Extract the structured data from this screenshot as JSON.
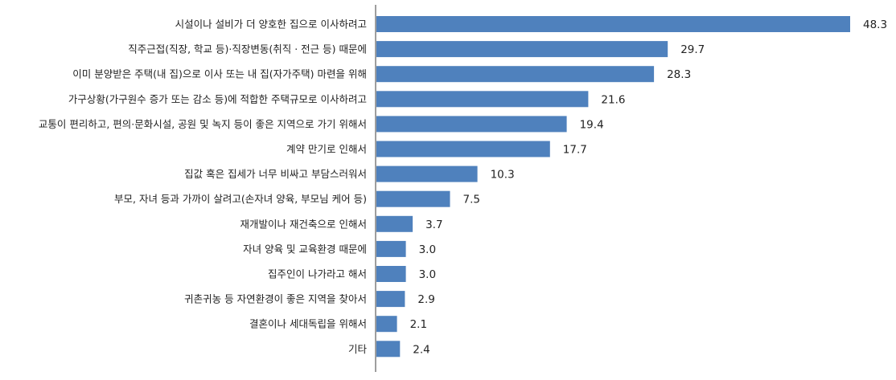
{
  "chart_data": {
    "type": "bar",
    "orientation": "horizontal",
    "categories": [
      "시설이나 설비가 더 양호한 집으로 이사하려고",
      "직주근접(직장, 학교 등)·직장변동(취직 · 전근 등) 때문에",
      "이미 분양받은 주택(내 집)으로 이사 또는 내 집(자가주택) 마련을 위해",
      "가구상황(가구원수 증가 또는 감소 등)에 적합한 주택규모로 이사하려고",
      "교통이 편리하고, 편의·문화시설, 공원 및 녹지 등이 좋은 지역으로 가기 위해서",
      "계약 만기로 인해서",
      "집값 혹은 집세가 너무 비싸고 부담스러워서",
      "부모, 자녀 등과 가까이 살려고(손자녀 양육, 부모님 케어 등)",
      "재개발이나 재건축으로 인해서",
      "자녀 양육 및 교육환경 때문에",
      "집주인이 나가라고 해서",
      "귀촌귀농 등 자연환경이 좋은 지역을 찾아서",
      "결혼이나 세대독립을 위해서",
      "기타"
    ],
    "values": [
      48.3,
      29.7,
      28.3,
      21.6,
      19.4,
      17.7,
      10.3,
      7.5,
      3.7,
      3.0,
      3.0,
      2.9,
      2.1,
      2.4
    ],
    "value_labels": [
      "48.3",
      "29.7",
      "28.3",
      "21.6",
      "19.4",
      "17.7",
      "10.3",
      "7.5",
      "3.7",
      "3.0",
      "3.0",
      "2.9",
      "2.1",
      "2.4"
    ],
    "xlim": [
      0,
      48.3
    ],
    "bar_color": "#4f81bd",
    "axis_color": "#7f7f7f",
    "grid": false,
    "legend": "none",
    "title": "",
    "xlabel": "",
    "ylabel": ""
  }
}
